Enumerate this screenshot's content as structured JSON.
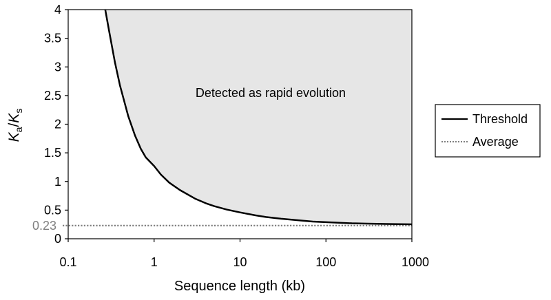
{
  "chart_data": {
    "type": "line",
    "xlabel": "Sequence length (kb)",
    "ylabel_main": "K",
    "ylabel_sub_a": "a",
    "ylabel_slash": "/",
    "ylabel_sub_s": "s",
    "x_scale": "log",
    "xlim": [
      0.1,
      1000
    ],
    "ylim": [
      0,
      4
    ],
    "x_ticks": [
      "0.1",
      "1",
      "10",
      "100",
      "1000"
    ],
    "y_ticks": [
      "0",
      "0.5",
      "1",
      "1.5",
      "2",
      "2.5",
      "3",
      "3.5",
      "4"
    ],
    "annotation": "Detected as rapid evolution",
    "average_label": "0.23",
    "grid": false,
    "legend_position": "right",
    "series": [
      {
        "name": "Threshold",
        "style": "solid",
        "color": "#000000",
        "x": [
          0.27,
          0.3,
          0.35,
          0.4,
          0.5,
          0.6,
          0.7,
          0.8,
          1,
          1.2,
          1.5,
          2,
          3,
          4,
          5,
          7,
          10,
          15,
          20,
          30,
          50,
          70,
          100,
          200,
          300,
          500,
          700,
          1000
        ],
        "y": [
          4.0,
          3.62,
          3.08,
          2.68,
          2.14,
          1.8,
          1.57,
          1.42,
          1.27,
          1.12,
          0.98,
          0.85,
          0.7,
          0.62,
          0.57,
          0.51,
          0.46,
          0.41,
          0.38,
          0.35,
          0.32,
          0.3,
          0.29,
          0.27,
          0.265,
          0.258,
          0.255,
          0.253
        ]
      },
      {
        "name": "Average",
        "style": "dotted",
        "color": "#7f7f7f",
        "x": [
          0.1,
          1000
        ],
        "y": [
          0.23,
          0.23
        ]
      }
    ],
    "fill_color": "#e6e6e6",
    "average_label_color": "#808080"
  }
}
